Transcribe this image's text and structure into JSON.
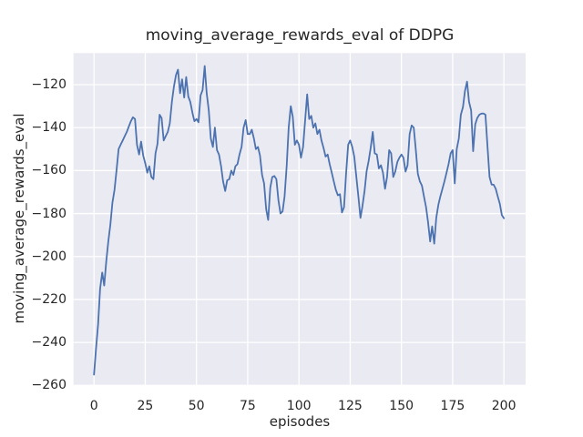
{
  "chart_data": {
    "type": "line",
    "title": "moving_average_rewards_eval of DDPG",
    "xlabel": "episodes",
    "ylabel": "moving_average_rewards_eval",
    "x_tick_values": [
      0,
      25,
      50,
      75,
      100,
      125,
      150,
      175,
      200
    ],
    "x_tick_labels": [
      "0",
      "25",
      "50",
      "75",
      "100",
      "125",
      "150",
      "175",
      "200"
    ],
    "y_tick_values": [
      -120,
      -140,
      -160,
      -180,
      -200,
      -220,
      -240,
      -260
    ],
    "y_tick_labels": [
      "−120",
      "−140",
      "−160",
      "−180",
      "−200",
      "−220",
      "−240",
      "−260"
    ],
    "xlim": [
      -10,
      210.6
    ],
    "ylim": [
      -260,
      -105.3
    ],
    "grid": true,
    "legend": "none",
    "colors": {
      "line": "#4C72B0",
      "axes_background": "#EAEAF2",
      "grid": "#FFFFFF",
      "text": "#262626",
      "figure_background": "#FFFFFF"
    },
    "series": [
      {
        "name": "moving_average_rewards_eval",
        "x_start": 0,
        "x_step": 1,
        "values": [
          -255,
          -243,
          -231.5,
          -215,
          -207.5,
          -213.5,
          -202,
          -193,
          -185,
          -175,
          -169,
          -160,
          -150,
          -148,
          -146,
          -144,
          -142,
          -139.5,
          -137,
          -135.2,
          -136,
          -148,
          -152.5,
          -146.5,
          -153,
          -156.5,
          -161,
          -158,
          -163,
          -164,
          -152,
          -147.5,
          -134,
          -135.5,
          -146,
          -144,
          -142,
          -138,
          -128,
          -121,
          -115.5,
          -113,
          -124,
          -117.5,
          -126,
          -116.5,
          -125.5,
          -128,
          -133,
          -137,
          -136,
          -137.5,
          -125,
          -122.5,
          -111.3,
          -124,
          -132,
          -145,
          -149,
          -140,
          -150.5,
          -152.5,
          -158,
          -165,
          -169.5,
          -164.5,
          -164,
          -160,
          -162,
          -158,
          -157,
          -152.5,
          -149,
          -140,
          -136.5,
          -143,
          -143,
          -141,
          -145,
          -150,
          -149,
          -153,
          -162,
          -166,
          -178,
          -183,
          -168,
          -163,
          -162.5,
          -164,
          -174,
          -180,
          -179,
          -172,
          -158,
          -140,
          -130,
          -135,
          -148,
          -146,
          -148,
          -154,
          -149,
          -137,
          -124.5,
          -136,
          -134.5,
          -140,
          -138,
          -143,
          -141,
          -146,
          -149.5,
          -153.5,
          -152.5,
          -157,
          -161,
          -165,
          -169,
          -171.5,
          -171,
          -179.5,
          -177,
          -161.5,
          -148,
          -146,
          -149,
          -153.5,
          -163,
          -172,
          -182,
          -176.5,
          -169.5,
          -160.5,
          -155.5,
          -149.5,
          -142,
          -152,
          -152.5,
          -159,
          -157.5,
          -161,
          -168.5,
          -163,
          -150.5,
          -152,
          -163,
          -160.5,
          -156,
          -154,
          -152.5,
          -154,
          -160.5,
          -157.5,
          -143,
          -139,
          -140,
          -150,
          -161.5,
          -165,
          -167,
          -172,
          -177,
          -184,
          -193,
          -186,
          -194,
          -182,
          -176,
          -172,
          -168.5,
          -165,
          -161,
          -157,
          -152,
          -150.5,
          -166,
          -150,
          -145,
          -134,
          -130.5,
          -123,
          -118.6,
          -128,
          -132,
          -151,
          -138.5,
          -135.5,
          -134,
          -133.5,
          -133.4,
          -134,
          -149,
          -163,
          -166.5,
          -166.6,
          -168.5,
          -172,
          -175.5,
          -180.7,
          -182.2
        ]
      }
    ]
  }
}
